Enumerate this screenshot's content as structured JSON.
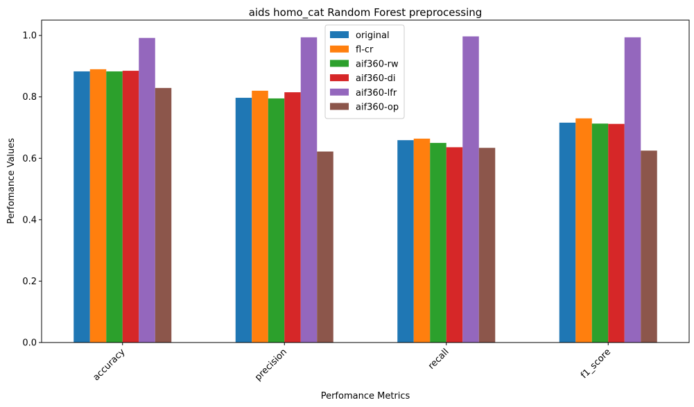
{
  "chart_data": {
    "type": "bar",
    "title": "aids homo_cat Random Forest preprocessing",
    "xlabel": "Perfomance Metrics",
    "ylabel": "Perfomance Values",
    "categories": [
      "accuracy",
      "precision",
      "recall",
      "f1_score"
    ],
    "ylim": [
      0,
      1.05
    ],
    "yticks": [
      "0.0",
      "0.2",
      "0.4",
      "0.6",
      "0.8",
      "1.0"
    ],
    "grid": false,
    "legend_position": "top-center",
    "series": [
      {
        "name": "original",
        "color": "#1f77b4",
        "values": [
          0.883,
          0.797,
          0.659,
          0.716
        ]
      },
      {
        "name": "fl-cr",
        "color": "#ff7f0e",
        "values": [
          0.89,
          0.82,
          0.664,
          0.73
        ]
      },
      {
        "name": "aif360-rw",
        "color": "#2ca02c",
        "values": [
          0.883,
          0.795,
          0.65,
          0.713
        ]
      },
      {
        "name": "aif360-di",
        "color": "#d62728",
        "values": [
          0.885,
          0.815,
          0.636,
          0.712
        ]
      },
      {
        "name": "aif360-lfr",
        "color": "#9467bd",
        "values": [
          0.992,
          0.994,
          0.997,
          0.994
        ]
      },
      {
        "name": "aif360-op",
        "color": "#8c564b",
        "values": [
          0.829,
          0.622,
          0.634,
          0.625
        ]
      }
    ]
  }
}
